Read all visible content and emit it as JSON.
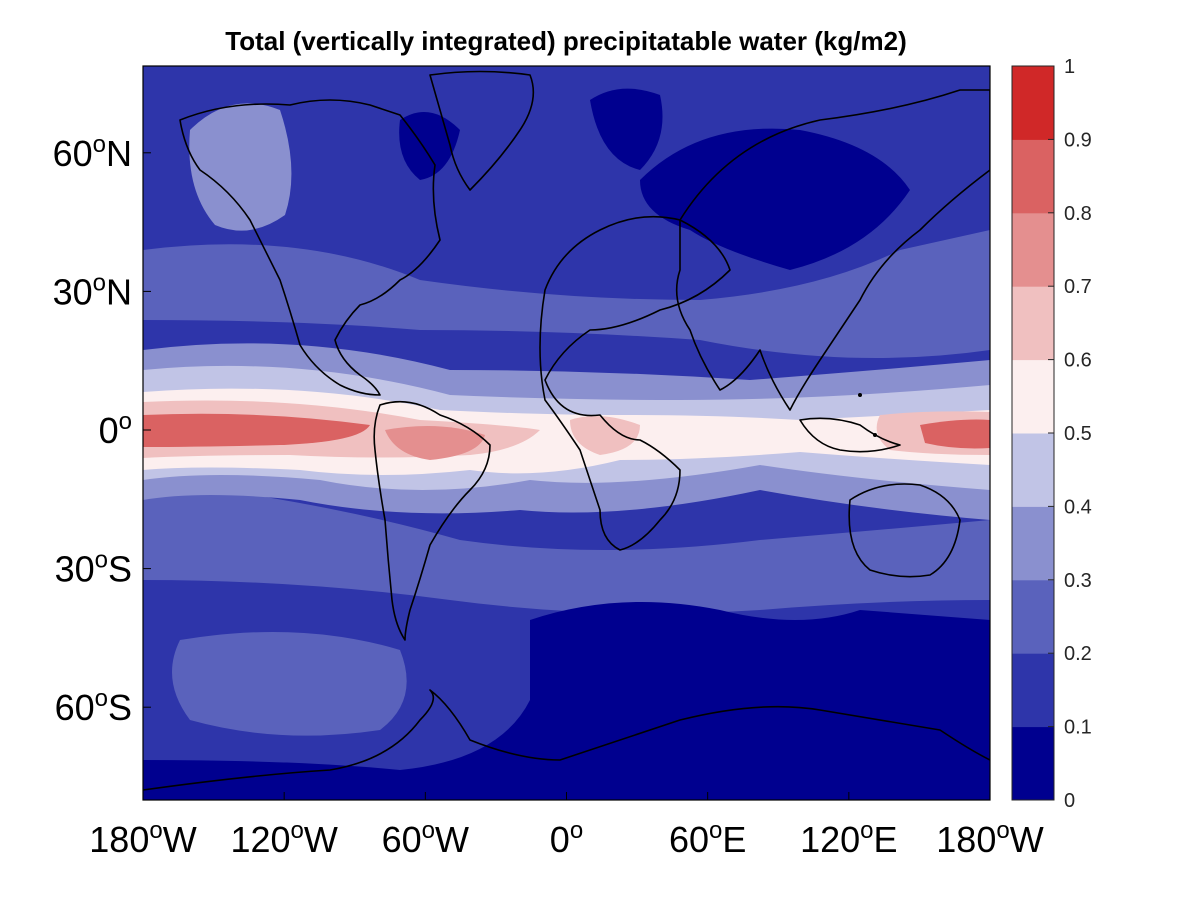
{
  "title": "Total (vertically integrated) precipitatable water (kg/m2)",
  "axes": {
    "lon_ticks": [
      {
        "value": -180,
        "num": "180",
        "deg": "o",
        "hem": "W"
      },
      {
        "value": -120,
        "num": "120",
        "deg": "o",
        "hem": "W"
      },
      {
        "value": -60,
        "num": "60",
        "deg": "o",
        "hem": "W"
      },
      {
        "value": 0,
        "num": "0",
        "deg": "o",
        "hem": ""
      },
      {
        "value": 60,
        "num": "60",
        "deg": "o",
        "hem": "E"
      },
      {
        "value": 120,
        "num": "120",
        "deg": "o",
        "hem": "E"
      },
      {
        "value": 180,
        "num": "180",
        "deg": "o",
        "hem": "W"
      }
    ],
    "lat_ticks": [
      {
        "value": 60,
        "num": "60",
        "deg": "o",
        "hem": "N"
      },
      {
        "value": 30,
        "num": "30",
        "deg": "o",
        "hem": "N"
      },
      {
        "value": 0,
        "num": "0",
        "deg": "o",
        "hem": ""
      },
      {
        "value": -30,
        "num": "30",
        "deg": "o",
        "hem": "S"
      },
      {
        "value": -60,
        "num": "60",
        "deg": "o",
        "hem": "S"
      }
    ]
  },
  "colorbar": {
    "levels": [
      0,
      0.1,
      0.2,
      0.3,
      0.4,
      0.5,
      0.6,
      0.7,
      0.8,
      0.9,
      1
    ],
    "labels": [
      "0",
      "0.1",
      "0.2",
      "0.3",
      "0.4",
      "0.5",
      "0.6",
      "0.7",
      "0.8",
      "0.9",
      "1"
    ],
    "colors": [
      "#00008f",
      "#2e35aa",
      "#5a62bc",
      "#8a90cf",
      "#c1c4e6",
      "#fcefef",
      "#f0c0c0",
      "#e48f8f",
      "#da6262",
      "#d02828"
    ]
  }
}
